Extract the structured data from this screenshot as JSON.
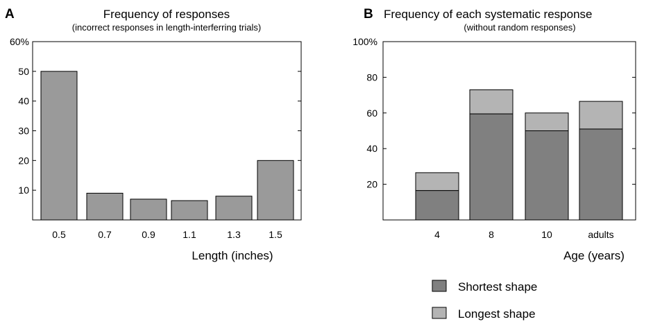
{
  "chart_data": [
    {
      "panel": "A",
      "type": "bar",
      "title": "Frequency of responses",
      "subtitle": "(incorrect responses in length-interferring trials)",
      "categories": [
        "0.5",
        "0.7",
        "0.9",
        "1.1",
        "1.3",
        "1.5"
      ],
      "values": [
        50,
        9,
        7,
        6.5,
        8,
        20
      ],
      "xlabel": "Length (inches)",
      "ylabel": "",
      "ylim": [
        0,
        60
      ],
      "yticks": [
        "10",
        "20",
        "30",
        "40",
        "50",
        "60%"
      ],
      "color": "#9a9a9a",
      "grid": false
    },
    {
      "panel": "B",
      "type": "bar",
      "stacked": true,
      "title": "Frequency of each systematic response",
      "subtitle": "(without random responses)",
      "categories": [
        "4",
        "8",
        "10",
        "adults"
      ],
      "series": [
        {
          "name": "Shortest shape",
          "values": [
            16.5,
            59.5,
            50,
            51
          ],
          "color": "#808080"
        },
        {
          "name": "Longest shape",
          "values": [
            10,
            13.5,
            10,
            15.5
          ],
          "color": "#b4b4b4"
        }
      ],
      "xlabel": "Age (years)",
      "ylabel": "",
      "ylim": [
        0,
        100
      ],
      "yticks": [
        "20",
        "40",
        "60",
        "80",
        "100%"
      ],
      "legend_position": "bottom-right",
      "grid": false
    }
  ]
}
